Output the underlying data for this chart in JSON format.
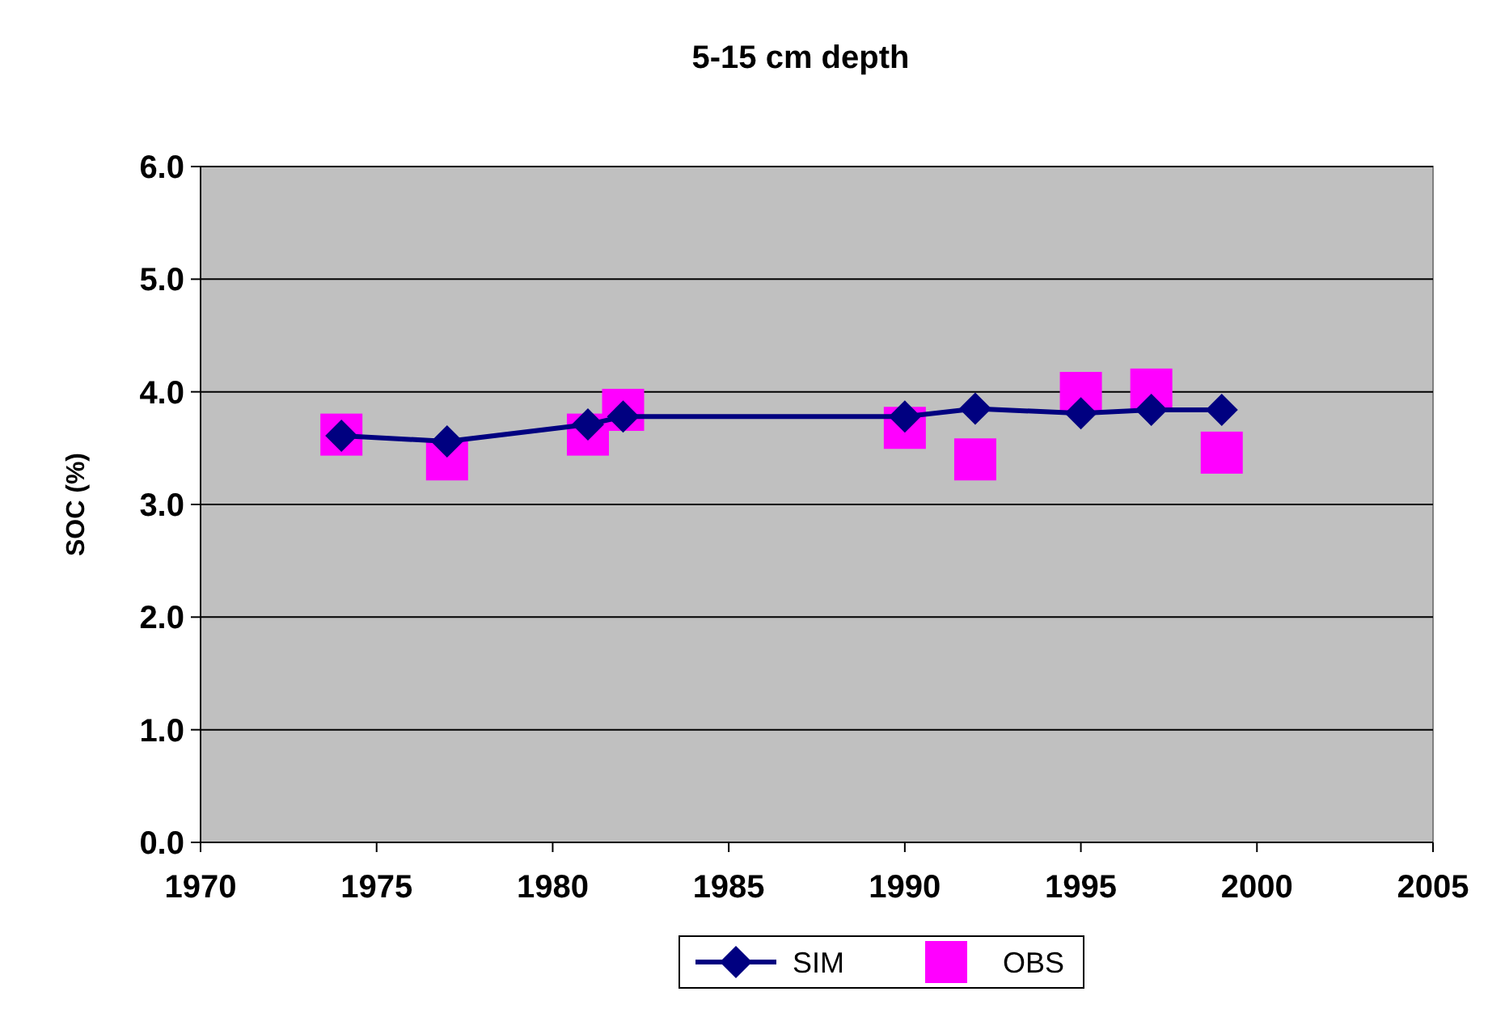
{
  "chart_data": {
    "type": "line",
    "title": "5-15 cm depth",
    "ylabel": "SOC (%)",
    "xlim": [
      1970,
      2005
    ],
    "xticks": [
      1970,
      1975,
      1980,
      1985,
      1990,
      1995,
      2000,
      2005
    ],
    "ylim": [
      0,
      6
    ],
    "yticks": [
      {
        "value": 0,
        "label": "0.0"
      },
      {
        "value": 1,
        "label": "1.0"
      },
      {
        "value": 2,
        "label": "2.0"
      },
      {
        "value": 3,
        "label": "3.0"
      },
      {
        "value": 4,
        "label": "4.0"
      },
      {
        "value": 5,
        "label": "5.0"
      },
      {
        "value": 6,
        "label": "6.0"
      }
    ],
    "grid": "y",
    "legend": "bottom",
    "series": [
      {
        "name": "SIM",
        "marker": "diamond",
        "color": "#000080",
        "x": [
          1974,
          1977,
          1981,
          1982,
          1990,
          1992,
          1995,
          1997,
          1999
        ],
        "values": [
          3.61,
          3.56,
          3.71,
          3.78,
          3.78,
          3.85,
          3.81,
          3.84,
          3.84
        ]
      },
      {
        "name": "OBS",
        "type": "scatter",
        "marker": "square",
        "color": "#ff00ff",
        "x": [
          1974,
          1977,
          1981,
          1982,
          1990,
          1992,
          1995,
          1997,
          1999
        ],
        "values": [
          3.62,
          3.4,
          3.62,
          3.84,
          3.68,
          3.4,
          3.99,
          4.02,
          3.46
        ]
      }
    ]
  }
}
